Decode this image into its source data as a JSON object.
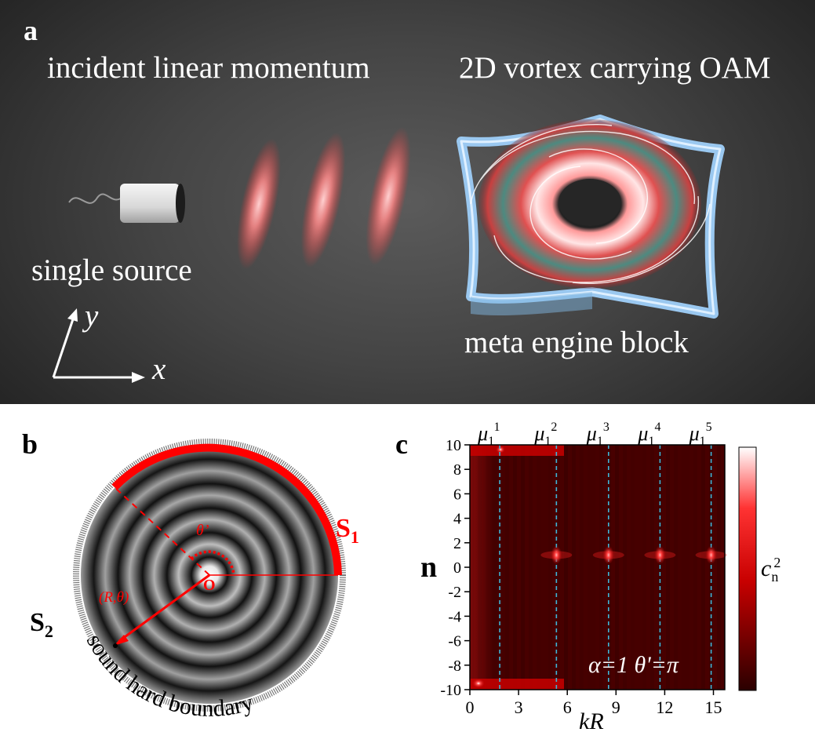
{
  "panel_a": {
    "letter": "a",
    "title_left": "incident linear momentum",
    "title_right": "2D vortex carrying OAM",
    "source_label": "single source",
    "block_label": "meta engine block",
    "axis_x": "x",
    "axis_y": "y"
  },
  "panel_b": {
    "letter": "b",
    "s1_main": "S",
    "s1_sub": "1",
    "s2_main": "S",
    "s2_sub": "2",
    "theta_prime": "θ’",
    "origin": "O",
    "point_label": "(R,θ)",
    "boundary_label": "sound hard boundary",
    "accent_color": "#ff0000"
  },
  "panel_c": {
    "letter": "c",
    "ylabel": "n",
    "xlabel": "kR",
    "annotation": "α=1  θ'=π",
    "colorbar_label_main": "c",
    "colorbar_label_sub": "n",
    "colorbar_label_sup": "2",
    "mu_main": "μ",
    "mu_sub": "1",
    "colors": {
      "low": "#2a0000",
      "mid": "#e00000",
      "high": "#ffffff",
      "dash": "#3fb6d8"
    }
  },
  "chart_data": {
    "type": "heatmap",
    "xlabel": "kR",
    "ylabel": "n",
    "xlim": [
      0,
      15.7
    ],
    "ylim": [
      -10,
      10
    ],
    "x_ticks": [
      "0",
      "3",
      "6",
      "9",
      "12",
      "15"
    ],
    "y_ticks": [
      "10",
      "8",
      "6",
      "4",
      "2",
      "0",
      "-2",
      "-4",
      "-6",
      "-8",
      "-10"
    ],
    "colorbar_label": "cn2",
    "resonances": [
      {
        "label": "1",
        "kR": 1.84,
        "peak_n": null
      },
      {
        "label": "2",
        "kR": 5.33,
        "peak_n": 1
      },
      {
        "label": "3",
        "kR": 8.54,
        "peak_n": 1
      },
      {
        "label": "4",
        "kR": 11.71,
        "peak_n": 1
      },
      {
        "label": "5",
        "kR": 14.86,
        "peak_n": 1
      }
    ]
  }
}
